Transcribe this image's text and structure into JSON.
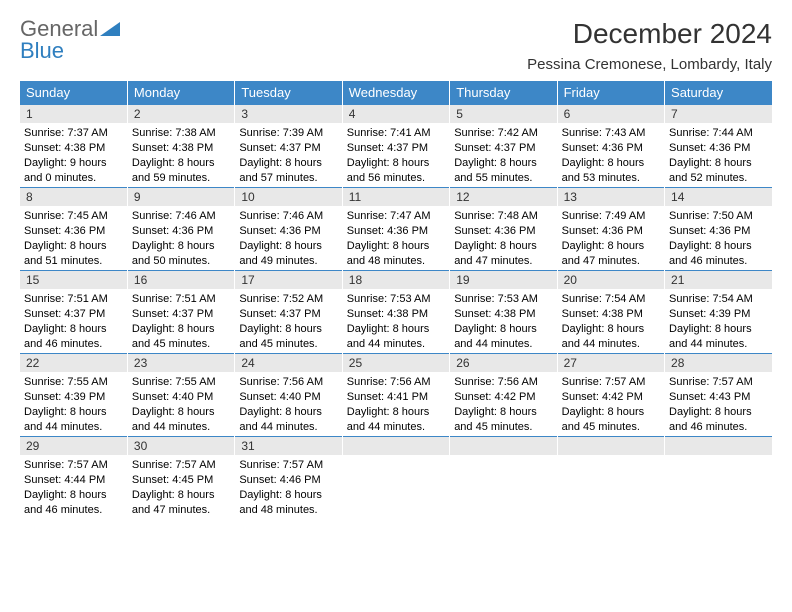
{
  "brand": {
    "part1": "General",
    "part2": "Blue"
  },
  "title": "December 2024",
  "location": "Pessina Cremonese, Lombardy, Italy",
  "colors": {
    "header_bg": "#3d87c7",
    "header_text": "#ffffff",
    "daynum_bg": "#e8e8e8",
    "border_accent": "#3d87c7",
    "brand_gray": "#666666",
    "brand_blue": "#2f7fbf",
    "page_bg": "#ffffff"
  },
  "day_headers": [
    "Sunday",
    "Monday",
    "Tuesday",
    "Wednesday",
    "Thursday",
    "Friday",
    "Saturday"
  ],
  "weeks": [
    [
      {
        "n": "1",
        "sunrise": "Sunrise: 7:37 AM",
        "sunset": "Sunset: 4:38 PM",
        "daylight": "Daylight: 9 hours and 0 minutes."
      },
      {
        "n": "2",
        "sunrise": "Sunrise: 7:38 AM",
        "sunset": "Sunset: 4:38 PM",
        "daylight": "Daylight: 8 hours and 59 minutes."
      },
      {
        "n": "3",
        "sunrise": "Sunrise: 7:39 AM",
        "sunset": "Sunset: 4:37 PM",
        "daylight": "Daylight: 8 hours and 57 minutes."
      },
      {
        "n": "4",
        "sunrise": "Sunrise: 7:41 AM",
        "sunset": "Sunset: 4:37 PM",
        "daylight": "Daylight: 8 hours and 56 minutes."
      },
      {
        "n": "5",
        "sunrise": "Sunrise: 7:42 AM",
        "sunset": "Sunset: 4:37 PM",
        "daylight": "Daylight: 8 hours and 55 minutes."
      },
      {
        "n": "6",
        "sunrise": "Sunrise: 7:43 AM",
        "sunset": "Sunset: 4:36 PM",
        "daylight": "Daylight: 8 hours and 53 minutes."
      },
      {
        "n": "7",
        "sunrise": "Sunrise: 7:44 AM",
        "sunset": "Sunset: 4:36 PM",
        "daylight": "Daylight: 8 hours and 52 minutes."
      }
    ],
    [
      {
        "n": "8",
        "sunrise": "Sunrise: 7:45 AM",
        "sunset": "Sunset: 4:36 PM",
        "daylight": "Daylight: 8 hours and 51 minutes."
      },
      {
        "n": "9",
        "sunrise": "Sunrise: 7:46 AM",
        "sunset": "Sunset: 4:36 PM",
        "daylight": "Daylight: 8 hours and 50 minutes."
      },
      {
        "n": "10",
        "sunrise": "Sunrise: 7:46 AM",
        "sunset": "Sunset: 4:36 PM",
        "daylight": "Daylight: 8 hours and 49 minutes."
      },
      {
        "n": "11",
        "sunrise": "Sunrise: 7:47 AM",
        "sunset": "Sunset: 4:36 PM",
        "daylight": "Daylight: 8 hours and 48 minutes."
      },
      {
        "n": "12",
        "sunrise": "Sunrise: 7:48 AM",
        "sunset": "Sunset: 4:36 PM",
        "daylight": "Daylight: 8 hours and 47 minutes."
      },
      {
        "n": "13",
        "sunrise": "Sunrise: 7:49 AM",
        "sunset": "Sunset: 4:36 PM",
        "daylight": "Daylight: 8 hours and 47 minutes."
      },
      {
        "n": "14",
        "sunrise": "Sunrise: 7:50 AM",
        "sunset": "Sunset: 4:36 PM",
        "daylight": "Daylight: 8 hours and 46 minutes."
      }
    ],
    [
      {
        "n": "15",
        "sunrise": "Sunrise: 7:51 AM",
        "sunset": "Sunset: 4:37 PM",
        "daylight": "Daylight: 8 hours and 46 minutes."
      },
      {
        "n": "16",
        "sunrise": "Sunrise: 7:51 AM",
        "sunset": "Sunset: 4:37 PM",
        "daylight": "Daylight: 8 hours and 45 minutes."
      },
      {
        "n": "17",
        "sunrise": "Sunrise: 7:52 AM",
        "sunset": "Sunset: 4:37 PM",
        "daylight": "Daylight: 8 hours and 45 minutes."
      },
      {
        "n": "18",
        "sunrise": "Sunrise: 7:53 AM",
        "sunset": "Sunset: 4:38 PM",
        "daylight": "Daylight: 8 hours and 44 minutes."
      },
      {
        "n": "19",
        "sunrise": "Sunrise: 7:53 AM",
        "sunset": "Sunset: 4:38 PM",
        "daylight": "Daylight: 8 hours and 44 minutes."
      },
      {
        "n": "20",
        "sunrise": "Sunrise: 7:54 AM",
        "sunset": "Sunset: 4:38 PM",
        "daylight": "Daylight: 8 hours and 44 minutes."
      },
      {
        "n": "21",
        "sunrise": "Sunrise: 7:54 AM",
        "sunset": "Sunset: 4:39 PM",
        "daylight": "Daylight: 8 hours and 44 minutes."
      }
    ],
    [
      {
        "n": "22",
        "sunrise": "Sunrise: 7:55 AM",
        "sunset": "Sunset: 4:39 PM",
        "daylight": "Daylight: 8 hours and 44 minutes."
      },
      {
        "n": "23",
        "sunrise": "Sunrise: 7:55 AM",
        "sunset": "Sunset: 4:40 PM",
        "daylight": "Daylight: 8 hours and 44 minutes."
      },
      {
        "n": "24",
        "sunrise": "Sunrise: 7:56 AM",
        "sunset": "Sunset: 4:40 PM",
        "daylight": "Daylight: 8 hours and 44 minutes."
      },
      {
        "n": "25",
        "sunrise": "Sunrise: 7:56 AM",
        "sunset": "Sunset: 4:41 PM",
        "daylight": "Daylight: 8 hours and 44 minutes."
      },
      {
        "n": "26",
        "sunrise": "Sunrise: 7:56 AM",
        "sunset": "Sunset: 4:42 PM",
        "daylight": "Daylight: 8 hours and 45 minutes."
      },
      {
        "n": "27",
        "sunrise": "Sunrise: 7:57 AM",
        "sunset": "Sunset: 4:42 PM",
        "daylight": "Daylight: 8 hours and 45 minutes."
      },
      {
        "n": "28",
        "sunrise": "Sunrise: 7:57 AM",
        "sunset": "Sunset: 4:43 PM",
        "daylight": "Daylight: 8 hours and 46 minutes."
      }
    ],
    [
      {
        "n": "29",
        "sunrise": "Sunrise: 7:57 AM",
        "sunset": "Sunset: 4:44 PM",
        "daylight": "Daylight: 8 hours and 46 minutes."
      },
      {
        "n": "30",
        "sunrise": "Sunrise: 7:57 AM",
        "sunset": "Sunset: 4:45 PM",
        "daylight": "Daylight: 8 hours and 47 minutes."
      },
      {
        "n": "31",
        "sunrise": "Sunrise: 7:57 AM",
        "sunset": "Sunset: 4:46 PM",
        "daylight": "Daylight: 8 hours and 48 minutes."
      },
      {
        "n": "",
        "sunrise": "",
        "sunset": "",
        "daylight": ""
      },
      {
        "n": "",
        "sunrise": "",
        "sunset": "",
        "daylight": ""
      },
      {
        "n": "",
        "sunrise": "",
        "sunset": "",
        "daylight": ""
      },
      {
        "n": "",
        "sunrise": "",
        "sunset": "",
        "daylight": ""
      }
    ]
  ]
}
